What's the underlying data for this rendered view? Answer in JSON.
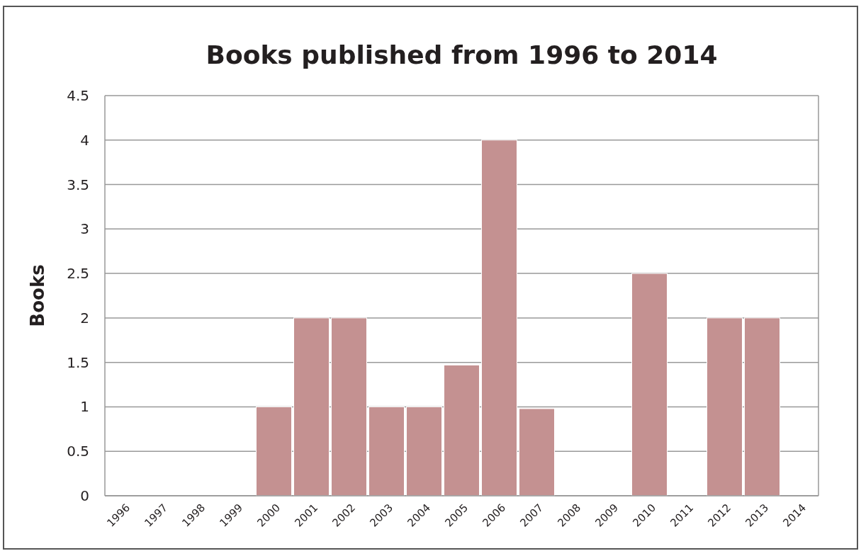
{
  "chart_data": {
    "type": "bar",
    "title": "Books published from 1996 to 2014",
    "ylabel": "Books",
    "categories": [
      "1996",
      "1997",
      "1998",
      "1999",
      "2000",
      "2001",
      "2002",
      "2003",
      "2004",
      "2005",
      "2006",
      "2007",
      "2008",
      "2009",
      "2010",
      "2011",
      "2012",
      "2013",
      "2014"
    ],
    "values": [
      0,
      0,
      0,
      0,
      1,
      2,
      2,
      1,
      1,
      1.47,
      4,
      0.98,
      0,
      0,
      2.5,
      0,
      2,
      2,
      0
    ],
    "color": "#c49191",
    "ylim": [
      0,
      4.5
    ],
    "yticks": [
      0,
      0.5,
      1,
      1.5,
      2,
      2.5,
      3,
      3.5,
      4,
      4.5
    ],
    "grid": "y"
  }
}
